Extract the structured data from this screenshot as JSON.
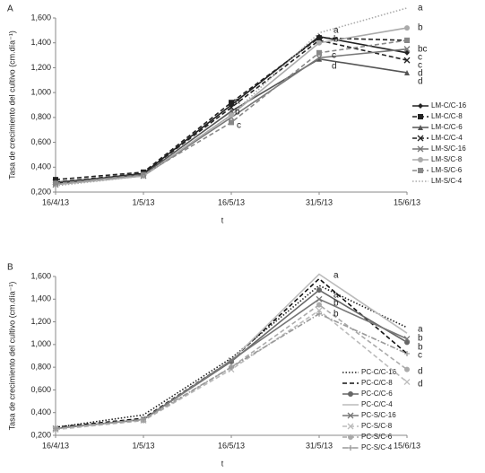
{
  "chart_data": [
    {
      "type": "line",
      "panel": "A",
      "y_label": "Tasa de crecimiento del cultivo (cm.día⁻¹)",
      "x_label": "t",
      "categories": [
        "16/4/13",
        "1/5/13",
        "16/5/13",
        "31/5/13",
        "15/6/13"
      ],
      "ylim": [
        0.2,
        1.6
      ],
      "yticks": [
        {
          "value": 0.2,
          "label": "0,200"
        },
        {
          "value": 0.4,
          "label": "0,400"
        },
        {
          "value": 0.6,
          "label": "0,600"
        },
        {
          "value": 0.8,
          "label": "0,800"
        },
        {
          "value": 1.0,
          "label": "1,000"
        },
        {
          "value": 1.2,
          "label": "1,200"
        },
        {
          "value": 1.4,
          "label": "1,400"
        },
        {
          "value": 1.6,
          "label": "1,600"
        }
      ],
      "grid": false,
      "legend": "right",
      "series": [
        {
          "name": "LM-C/C-16",
          "color": "#222222",
          "dash": "solid",
          "marker": "diamond",
          "values": [
            0.27,
            0.35,
            0.9,
            1.45,
            1.32
          ]
        },
        {
          "name": "LM-C/C-8",
          "color": "#222222",
          "dash": "dashed",
          "marker": "square",
          "values": [
            0.3,
            0.36,
            0.92,
            1.44,
            1.42
          ]
        },
        {
          "name": "LM-C/C-6",
          "color": "#555555",
          "dash": "solid",
          "marker": "triangle",
          "values": [
            0.28,
            0.34,
            0.85,
            1.27,
            1.16
          ]
        },
        {
          "name": "LM-C/C-4",
          "color": "#222222",
          "dash": "dashed",
          "marker": "x",
          "values": [
            0.28,
            0.35,
            0.88,
            1.42,
            1.26
          ]
        },
        {
          "name": "LM-S/C-16",
          "color": "#777777",
          "dash": "solid",
          "marker": "x",
          "values": [
            0.26,
            0.33,
            0.8,
            1.28,
            1.35
          ]
        },
        {
          "name": "LM-S/C-8",
          "color": "#aaaaaa",
          "dash": "solid",
          "marker": "circle",
          "values": [
            0.26,
            0.33,
            0.82,
            1.4,
            1.52
          ]
        },
        {
          "name": "LM-S/C-6",
          "color": "#888888",
          "dash": "dashed",
          "marker": "square",
          "values": [
            0.27,
            0.34,
            0.76,
            1.32,
            1.42
          ]
        },
        {
          "name": "LM-S/C-4",
          "color": "#aaaaaa",
          "dash": "dotted",
          "marker": "none",
          "values": [
            0.25,
            0.33,
            0.82,
            1.48,
            1.68
          ]
        }
      ],
      "annotations": [
        "a",
        "b",
        "c",
        "a",
        "b",
        "c",
        "d",
        "a",
        "b",
        "bc",
        "c",
        "c",
        "d",
        "d"
      ]
    },
    {
      "type": "line",
      "panel": "B",
      "y_label": "Tasa de crecimiento del cultivo (cm.día⁻¹)",
      "x_label": "t",
      "categories": [
        "16/4/13",
        "1/5/13",
        "16/5/13",
        "31/5/13",
        "15/6/13"
      ],
      "ylim": [
        0.2,
        1.6
      ],
      "yticks": [
        {
          "value": 0.2,
          "label": "0,200"
        },
        {
          "value": 0.4,
          "label": "0,400"
        },
        {
          "value": 0.6,
          "label": "0,600"
        },
        {
          "value": 0.8,
          "label": "0,800"
        },
        {
          "value": 1.0,
          "label": "1,000"
        },
        {
          "value": 1.2,
          "label": "1,200"
        },
        {
          "value": 1.4,
          "label": "1,400"
        },
        {
          "value": 1.6,
          "label": "1,600"
        }
      ],
      "grid": false,
      "legend": "lower right",
      "series": [
        {
          "name": "PC-C/C-16",
          "color": "#222222",
          "dash": "dotted",
          "marker": "none",
          "values": [
            0.27,
            0.38,
            0.88,
            1.52,
            1.15
          ]
        },
        {
          "name": "PC-C/C-8",
          "color": "#111111",
          "dash": "dashed",
          "marker": "none",
          "values": [
            0.27,
            0.35,
            0.86,
            1.58,
            0.92
          ]
        },
        {
          "name": "PC-C/C-6",
          "color": "#666666",
          "dash": "solid",
          "marker": "circle",
          "values": [
            0.26,
            0.34,
            0.85,
            1.48,
            1.02
          ]
        },
        {
          "name": "PC-C/C-4",
          "color": "#bbbbbb",
          "dash": "solid",
          "marker": "none",
          "values": [
            0.26,
            0.34,
            0.86,
            1.62,
            1.1
          ]
        },
        {
          "name": "PC-S/C-16",
          "color": "#777777",
          "dash": "solid",
          "marker": "x",
          "values": [
            0.26,
            0.34,
            0.86,
            1.4,
            1.05
          ]
        },
        {
          "name": "PC-S/C-8",
          "color": "#bbbbbb",
          "dash": "dashed",
          "marker": "x",
          "values": [
            0.25,
            0.33,
            0.78,
            1.3,
            0.67
          ]
        },
        {
          "name": "PC-S/C-6",
          "color": "#aaaaaa",
          "dash": "dashed",
          "marker": "circle",
          "values": [
            0.26,
            0.33,
            0.8,
            1.35,
            0.78
          ]
        },
        {
          "name": "PC-S/C-4",
          "color": "#999999",
          "dash": "dashdot",
          "marker": "plus",
          "values": [
            0.26,
            0.34,
            0.8,
            1.27,
            0.92
          ]
        }
      ],
      "annotations": [
        "a",
        "a",
        "b",
        "b",
        "a",
        "b",
        "b",
        "c",
        "d",
        "d"
      ]
    }
  ]
}
